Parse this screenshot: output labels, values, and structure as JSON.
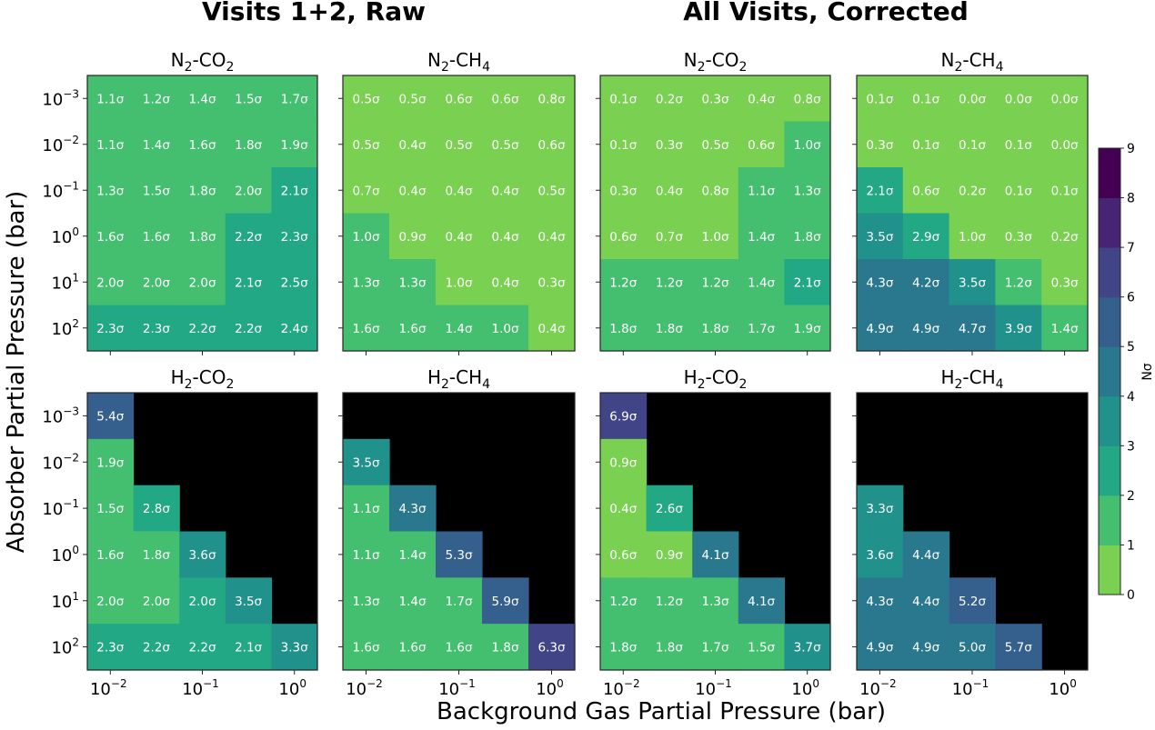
{
  "chart_data": {
    "type": "heatmap",
    "column_titles": [
      "Visits 1+2, Raw",
      "All Visits, Corrected"
    ],
    "xlabel": "Background Gas Partial Pressure (bar)",
    "ylabel": "Absorber Partial Pressure (bar)",
    "x_ticks": [
      {
        "base": "10",
        "exp": "−2"
      },
      {
        "base": "10",
        "exp": "−1"
      },
      {
        "base": "10",
        "exp": "0"
      }
    ],
    "y_ticks": [
      {
        "base": "10",
        "exp": "−3"
      },
      {
        "base": "10",
        "exp": "−2"
      },
      {
        "base": "10",
        "exp": "−1"
      },
      {
        "base": "10",
        "exp": "0"
      },
      {
        "base": "10",
        "exp": "1"
      },
      {
        "base": "10",
        "exp": "2"
      }
    ],
    "colorbar": {
      "label": "Nσ",
      "ticks": [
        "0",
        "1",
        "2",
        "3",
        "4",
        "5",
        "6",
        "7",
        "8",
        "9"
      ],
      "range": [
        0,
        9
      ],
      "colors": [
        "#7ad151",
        "#44bf70",
        "#22a884",
        "#21918c",
        "#2a788e",
        "#355f8d",
        "#414487",
        "#482475",
        "#440154"
      ],
      "masked_color": "#000000"
    },
    "panels": [
      {
        "group": "Visits 1+2, Raw",
        "title": {
          "a": "N",
          "a_sub": "2",
          "b": "-CO",
          "b_sub": "2",
          "c": ""
        },
        "values": [
          [
            "1.1σ",
            "1.2σ",
            "1.4σ",
            "1.5σ",
            "1.7σ"
          ],
          [
            "1.1σ",
            "1.4σ",
            "1.6σ",
            "1.8σ",
            "1.9σ"
          ],
          [
            "1.3σ",
            "1.5σ",
            "1.8σ",
            "2.0σ",
            "2.1σ"
          ],
          [
            "1.6σ",
            "1.6σ",
            "1.8σ",
            "2.2σ",
            "2.3σ"
          ],
          [
            "2.0σ",
            "2.0σ",
            "2.0σ",
            "2.1σ",
            "2.5σ"
          ],
          [
            "2.3σ",
            "2.3σ",
            "2.2σ",
            "2.2σ",
            "2.4σ"
          ]
        ],
        "bins": [
          [
            1,
            1,
            1,
            1,
            1
          ],
          [
            1,
            1,
            1,
            1,
            1
          ],
          [
            1,
            1,
            1,
            1,
            2
          ],
          [
            1,
            1,
            1,
            2,
            2
          ],
          [
            1,
            1,
            1,
            2,
            2
          ],
          [
            2,
            2,
            2,
            2,
            2
          ]
        ]
      },
      {
        "group": "Visits 1+2, Raw",
        "title": {
          "a": "N",
          "a_sub": "2",
          "b": "-CH",
          "b_sub": "4",
          "c": ""
        },
        "values": [
          [
            "0.5σ",
            "0.5σ",
            "0.6σ",
            "0.6σ",
            "0.8σ"
          ],
          [
            "0.5σ",
            "0.4σ",
            "0.5σ",
            "0.5σ",
            "0.6σ"
          ],
          [
            "0.7σ",
            "0.4σ",
            "0.4σ",
            "0.4σ",
            "0.5σ"
          ],
          [
            "1.0σ",
            "0.9σ",
            "0.4σ",
            "0.4σ",
            "0.4σ"
          ],
          [
            "1.3σ",
            "1.3σ",
            "1.0σ",
            "0.4σ",
            "0.3σ"
          ],
          [
            "1.6σ",
            "1.6σ",
            "1.4σ",
            "1.0σ",
            "0.4σ"
          ]
        ],
        "bins": [
          [
            0,
            0,
            0,
            0,
            0
          ],
          [
            0,
            0,
            0,
            0,
            0
          ],
          [
            0,
            0,
            0,
            0,
            0
          ],
          [
            1,
            0,
            0,
            0,
            0
          ],
          [
            1,
            1,
            0,
            0,
            0
          ],
          [
            1,
            1,
            1,
            1,
            0
          ]
        ]
      },
      {
        "group": "All Visits, Corrected",
        "title": {
          "a": "N",
          "a_sub": "2",
          "b": "-CO",
          "b_sub": "2",
          "c": ""
        },
        "values": [
          [
            "0.1σ",
            "0.2σ",
            "0.3σ",
            "0.4σ",
            "0.8σ"
          ],
          [
            "0.1σ",
            "0.3σ",
            "0.5σ",
            "0.6σ",
            "1.0σ"
          ],
          [
            "0.3σ",
            "0.4σ",
            "0.8σ",
            "1.1σ",
            "1.3σ"
          ],
          [
            "0.6σ",
            "0.7σ",
            "1.0σ",
            "1.4σ",
            "1.8σ"
          ],
          [
            "1.2σ",
            "1.2σ",
            "1.2σ",
            "1.4σ",
            "2.1σ"
          ],
          [
            "1.8σ",
            "1.8σ",
            "1.8σ",
            "1.7σ",
            "1.9σ"
          ]
        ],
        "bins": [
          [
            0,
            0,
            0,
            0,
            0
          ],
          [
            0,
            0,
            0,
            0,
            1
          ],
          [
            0,
            0,
            0,
            1,
            1
          ],
          [
            0,
            0,
            0,
            1,
            1
          ],
          [
            1,
            1,
            1,
            1,
            2
          ],
          [
            1,
            1,
            1,
            1,
            1
          ]
        ]
      },
      {
        "group": "All Visits, Corrected",
        "title": {
          "a": "N",
          "a_sub": "2",
          "b": "-CH",
          "b_sub": "4",
          "c": ""
        },
        "values": [
          [
            "0.1σ",
            "0.1σ",
            "0.0σ",
            "0.0σ",
            "0.0σ"
          ],
          [
            "0.3σ",
            "0.1σ",
            "0.1σ",
            "0.1σ",
            "0.0σ"
          ],
          [
            "2.1σ",
            "0.6σ",
            "0.2σ",
            "0.1σ",
            "0.1σ"
          ],
          [
            "3.5σ",
            "2.9σ",
            "1.0σ",
            "0.3σ",
            "0.2σ"
          ],
          [
            "4.3σ",
            "4.2σ",
            "3.5σ",
            "1.2σ",
            "0.3σ"
          ],
          [
            "4.9σ",
            "4.9σ",
            "4.7σ",
            "3.9σ",
            "1.4σ"
          ]
        ],
        "bins": [
          [
            0,
            0,
            0,
            0,
            0
          ],
          [
            0,
            0,
            0,
            0,
            0
          ],
          [
            2,
            0,
            0,
            0,
            0
          ],
          [
            3,
            2,
            0,
            0,
            0
          ],
          [
            4,
            4,
            3,
            1,
            0
          ],
          [
            4,
            4,
            4,
            3,
            1
          ]
        ]
      },
      {
        "group": "Visits 1+2, Raw",
        "title": {
          "a": "H",
          "a_sub": "2",
          "b": "-CO",
          "b_sub": "2",
          "c": ""
        },
        "values": [
          [
            "5.4σ",
            null,
            null,
            null,
            null
          ],
          [
            "1.9σ",
            null,
            null,
            null,
            null
          ],
          [
            "1.5σ",
            "2.8σ",
            null,
            null,
            null
          ],
          [
            "1.6σ",
            "1.8σ",
            "3.6σ",
            null,
            null
          ],
          [
            "2.0σ",
            "2.0σ",
            "2.0σ",
            "3.5σ",
            null
          ],
          [
            "2.3σ",
            "2.2σ",
            "2.2σ",
            "2.1σ",
            "3.3σ"
          ]
        ],
        "bins": [
          [
            5,
            null,
            null,
            null,
            null
          ],
          [
            1,
            null,
            null,
            null,
            null
          ],
          [
            1,
            2,
            null,
            null,
            null
          ],
          [
            1,
            1,
            3,
            null,
            null
          ],
          [
            1,
            1,
            2,
            3,
            null
          ],
          [
            2,
            2,
            2,
            2,
            3
          ]
        ]
      },
      {
        "group": "Visits 1+2, Raw",
        "title": {
          "a": "H",
          "a_sub": "2",
          "b": "-CH",
          "b_sub": "4",
          "c": ""
        },
        "values": [
          [
            null,
            null,
            null,
            null,
            null
          ],
          [
            "3.5σ",
            null,
            null,
            null,
            null
          ],
          [
            "1.1σ",
            "4.3σ",
            null,
            null,
            null
          ],
          [
            "1.1σ",
            "1.4σ",
            "5.3σ",
            null,
            null
          ],
          [
            "1.3σ",
            "1.4σ",
            "1.7σ",
            "5.9σ",
            null
          ],
          [
            "1.6σ",
            "1.6σ",
            "1.6σ",
            "1.8σ",
            "6.3σ"
          ]
        ],
        "bins": [
          [
            null,
            null,
            null,
            null,
            null
          ],
          [
            3,
            null,
            null,
            null,
            null
          ],
          [
            1,
            4,
            null,
            null,
            null
          ],
          [
            1,
            1,
            5,
            null,
            null
          ],
          [
            1,
            1,
            1,
            5,
            null
          ],
          [
            1,
            1,
            1,
            1,
            6
          ]
        ]
      },
      {
        "group": "All Visits, Corrected",
        "title": {
          "a": "H",
          "a_sub": "2",
          "b": "-CO",
          "b_sub": "2",
          "c": ""
        },
        "values": [
          [
            "6.9σ",
            null,
            null,
            null,
            null
          ],
          [
            "0.9σ",
            null,
            null,
            null,
            null
          ],
          [
            "0.4σ",
            "2.6σ",
            null,
            null,
            null
          ],
          [
            "0.6σ",
            "0.9σ",
            "4.1σ",
            null,
            null
          ],
          [
            "1.2σ",
            "1.2σ",
            "1.3σ",
            "4.1σ",
            null
          ],
          [
            "1.8σ",
            "1.8σ",
            "1.7σ",
            "1.5σ",
            "3.7σ"
          ]
        ],
        "bins": [
          [
            6,
            null,
            null,
            null,
            null
          ],
          [
            0,
            null,
            null,
            null,
            null
          ],
          [
            0,
            2,
            null,
            null,
            null
          ],
          [
            0,
            0,
            4,
            null,
            null
          ],
          [
            1,
            1,
            1,
            4,
            null
          ],
          [
            1,
            1,
            1,
            1,
            3
          ]
        ]
      },
      {
        "group": "All Visits, Corrected",
        "title": {
          "a": "H",
          "a_sub": "2",
          "b": "-CH",
          "b_sub": "4",
          "c": ""
        },
        "values": [
          [
            null,
            null,
            null,
            null,
            null
          ],
          [
            null,
            null,
            null,
            null,
            null
          ],
          [
            "3.3σ",
            null,
            null,
            null,
            null
          ],
          [
            "3.6σ",
            "4.4σ",
            null,
            null,
            null
          ],
          [
            "4.3σ",
            "4.4σ",
            "5.2σ",
            null,
            null
          ],
          [
            "4.9σ",
            "4.9σ",
            "5.0σ",
            "5.7σ",
            null
          ]
        ],
        "bins": [
          [
            null,
            null,
            null,
            null,
            null
          ],
          [
            null,
            null,
            null,
            null,
            null
          ],
          [
            3,
            null,
            null,
            null,
            null
          ],
          [
            3,
            4,
            null,
            null,
            null
          ],
          [
            4,
            4,
            5,
            null,
            null
          ],
          [
            4,
            4,
            4,
            5,
            null
          ]
        ]
      }
    ]
  }
}
